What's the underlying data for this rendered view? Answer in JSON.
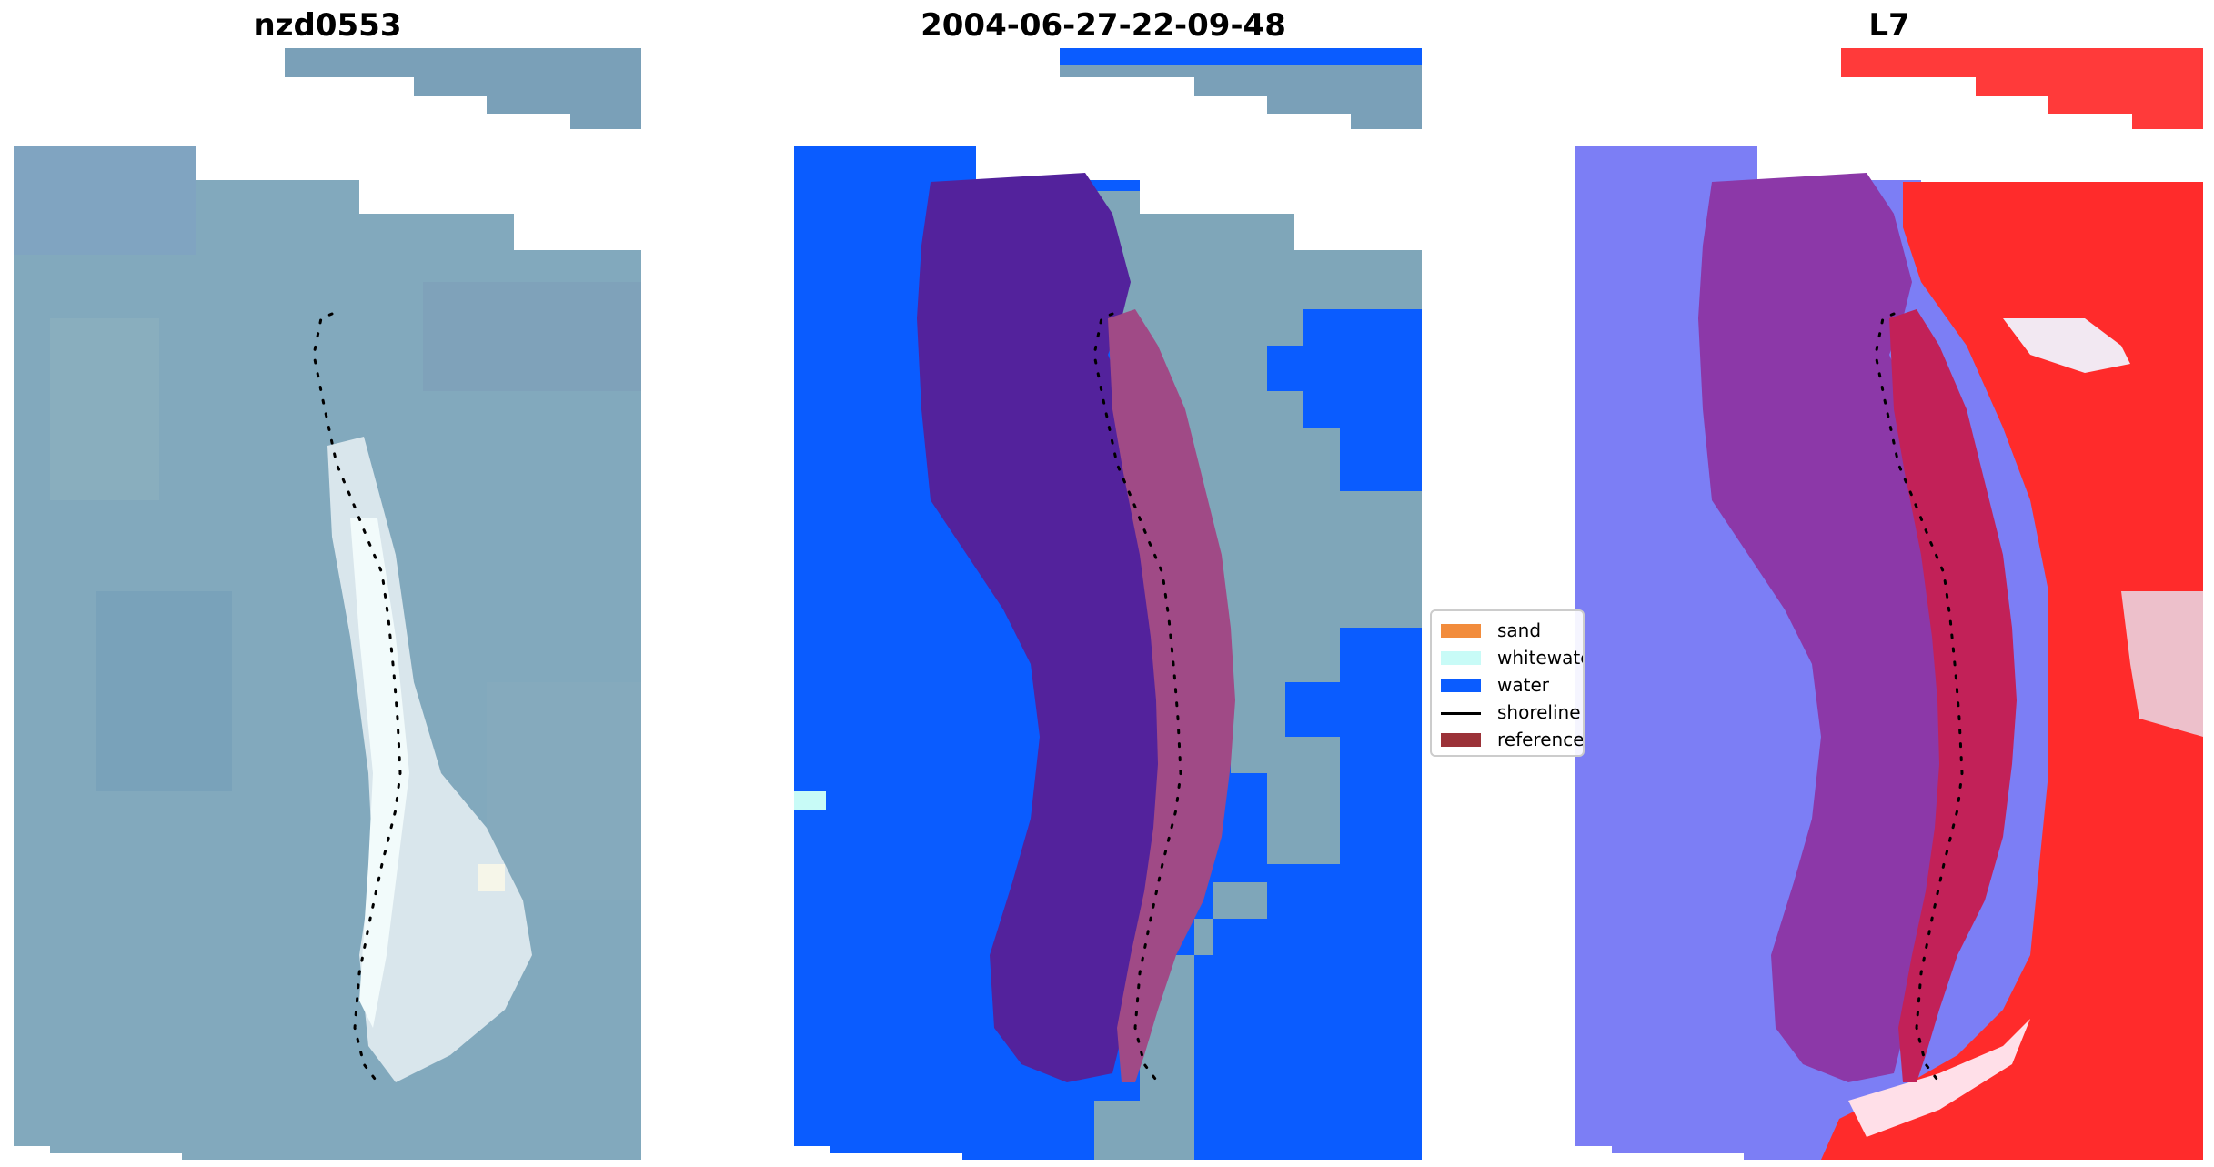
{
  "panels": [
    {
      "title": "nzd0553"
    },
    {
      "title": "2004-06-27-22-09-48"
    },
    {
      "title": "L7"
    }
  ],
  "legend": {
    "items": [
      {
        "label": "sand",
        "color": "#f28c3c",
        "kind": "patch"
      },
      {
        "label": "whitewater",
        "color": "#c8fbf7",
        "kind": "patch"
      },
      {
        "label": "water",
        "color": "#0a5cff",
        "kind": "patch"
      },
      {
        "label": "shoreline",
        "color": "#000000",
        "kind": "line"
      },
      {
        "label": "reference",
        "color": "#9b3238",
        "kind": "patch"
      }
    ]
  },
  "colors": {
    "water_class": "#0a5cff",
    "whitewater_class": "#c8fbf7",
    "sand_class": "#f28c3c",
    "reference_overlay": "#9b3238",
    "landmass_overlay": "#53229c",
    "imagery_base": "#7ea6b8",
    "index_low": "#7a7cf5",
    "index_high": "#ff2b2b"
  }
}
